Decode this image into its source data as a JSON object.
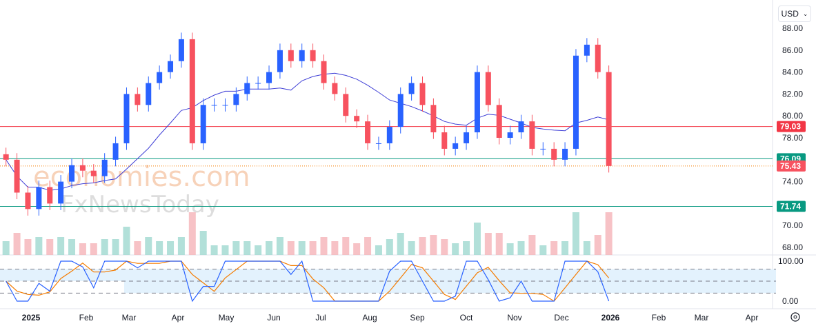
{
  "currency_selector": {
    "value": "USD",
    "icon": "chevron-down-icon"
  },
  "watermark": {
    "line1": "economies.com",
    "line2": "FxNewsToday"
  },
  "chart_data": {
    "type": "candlestick",
    "interval_shown": "weekly approximation of daily candles",
    "x": [
      "2024-12-16",
      "2024-12-23",
      "2024-12-30",
      "2025-01-06",
      "2025-01-13",
      "2025-01-20",
      "2025-01-27",
      "2025-02-03",
      "2025-02-10",
      "2025-02-17",
      "2025-02-24",
      "2025-03-03",
      "2025-03-10",
      "2025-03-17",
      "2025-03-24",
      "2025-03-31",
      "2025-04-07",
      "2025-04-14",
      "2025-04-21",
      "2025-04-28",
      "2025-05-05",
      "2025-05-12",
      "2025-05-19",
      "2025-05-26",
      "2025-06-02",
      "2025-06-09",
      "2025-06-16",
      "2025-06-23",
      "2025-06-30",
      "2025-07-07",
      "2025-07-14",
      "2025-07-21",
      "2025-07-28",
      "2025-08-04",
      "2025-08-11",
      "2025-08-18",
      "2025-08-25",
      "2025-09-01",
      "2025-09-08",
      "2025-09-15",
      "2025-09-22",
      "2025-09-29",
      "2025-10-06",
      "2025-10-13",
      "2025-10-20",
      "2025-10-27",
      "2025-11-03",
      "2025-11-10",
      "2025-11-17",
      "2025-11-24",
      "2025-12-01",
      "2025-12-08",
      "2025-12-15",
      "2025-12-22",
      "2025-12-29",
      "2026-01-05"
    ],
    "close": [
      76,
      73,
      71.5,
      73.5,
      72,
      74,
      75.5,
      75,
      74.5,
      76,
      77.5,
      82,
      81,
      83,
      84,
      85,
      87,
      77.5,
      81,
      81,
      81,
      82,
      83,
      83,
      84,
      86,
      85,
      86,
      85,
      83,
      82,
      80,
      79.5,
      77.5,
      77.5,
      79,
      82,
      83,
      81,
      78.5,
      77,
      77.5,
      78.5,
      84,
      81,
      78,
      78.5,
      79.5,
      77,
      77,
      76,
      77,
      85.5,
      86.5,
      84,
      75.43
    ],
    "price_axis": {
      "ylim": [
        68,
        88
      ],
      "ticks": [
        "88.00",
        "86.00",
        "84.00",
        "82.00",
        "80.00",
        "78.00",
        "74.00",
        "70.00",
        "68.00"
      ]
    },
    "x_axis": {
      "ticks": [
        "2025",
        "Feb",
        "Mar",
        "Apr",
        "May",
        "Jun",
        "Jul",
        "Aug",
        "Sep",
        "Oct",
        "Nov",
        "Dec",
        "2026",
        "Feb",
        "Mar",
        "Apr"
      ]
    },
    "levels": [
      {
        "value": 79.03,
        "label": "79.03",
        "color": "#f23645",
        "style": "solid"
      },
      {
        "value": 76.09,
        "label": "76.09",
        "color": "#089981",
        "style": "solid"
      },
      {
        "value": 75.43,
        "label": "75.43",
        "color": "#f7525f",
        "style": "dotted-last-price"
      },
      {
        "value": 71.74,
        "label": "71.74",
        "color": "#089981",
        "style": "solid"
      }
    ],
    "oscillator": {
      "type": "stochastic",
      "ylim": [
        0,
        100
      ],
      "ticks": [
        "100.00",
        "0.00"
      ],
      "bands": [
        20,
        50,
        80
      ]
    },
    "colors": {
      "up": "#2962ff",
      "down": "#f7525f",
      "ma": "#3f3fd6",
      "k": "#2962ff",
      "d": "#f57c00",
      "band_fill": "#e3f2fd"
    }
  }
}
